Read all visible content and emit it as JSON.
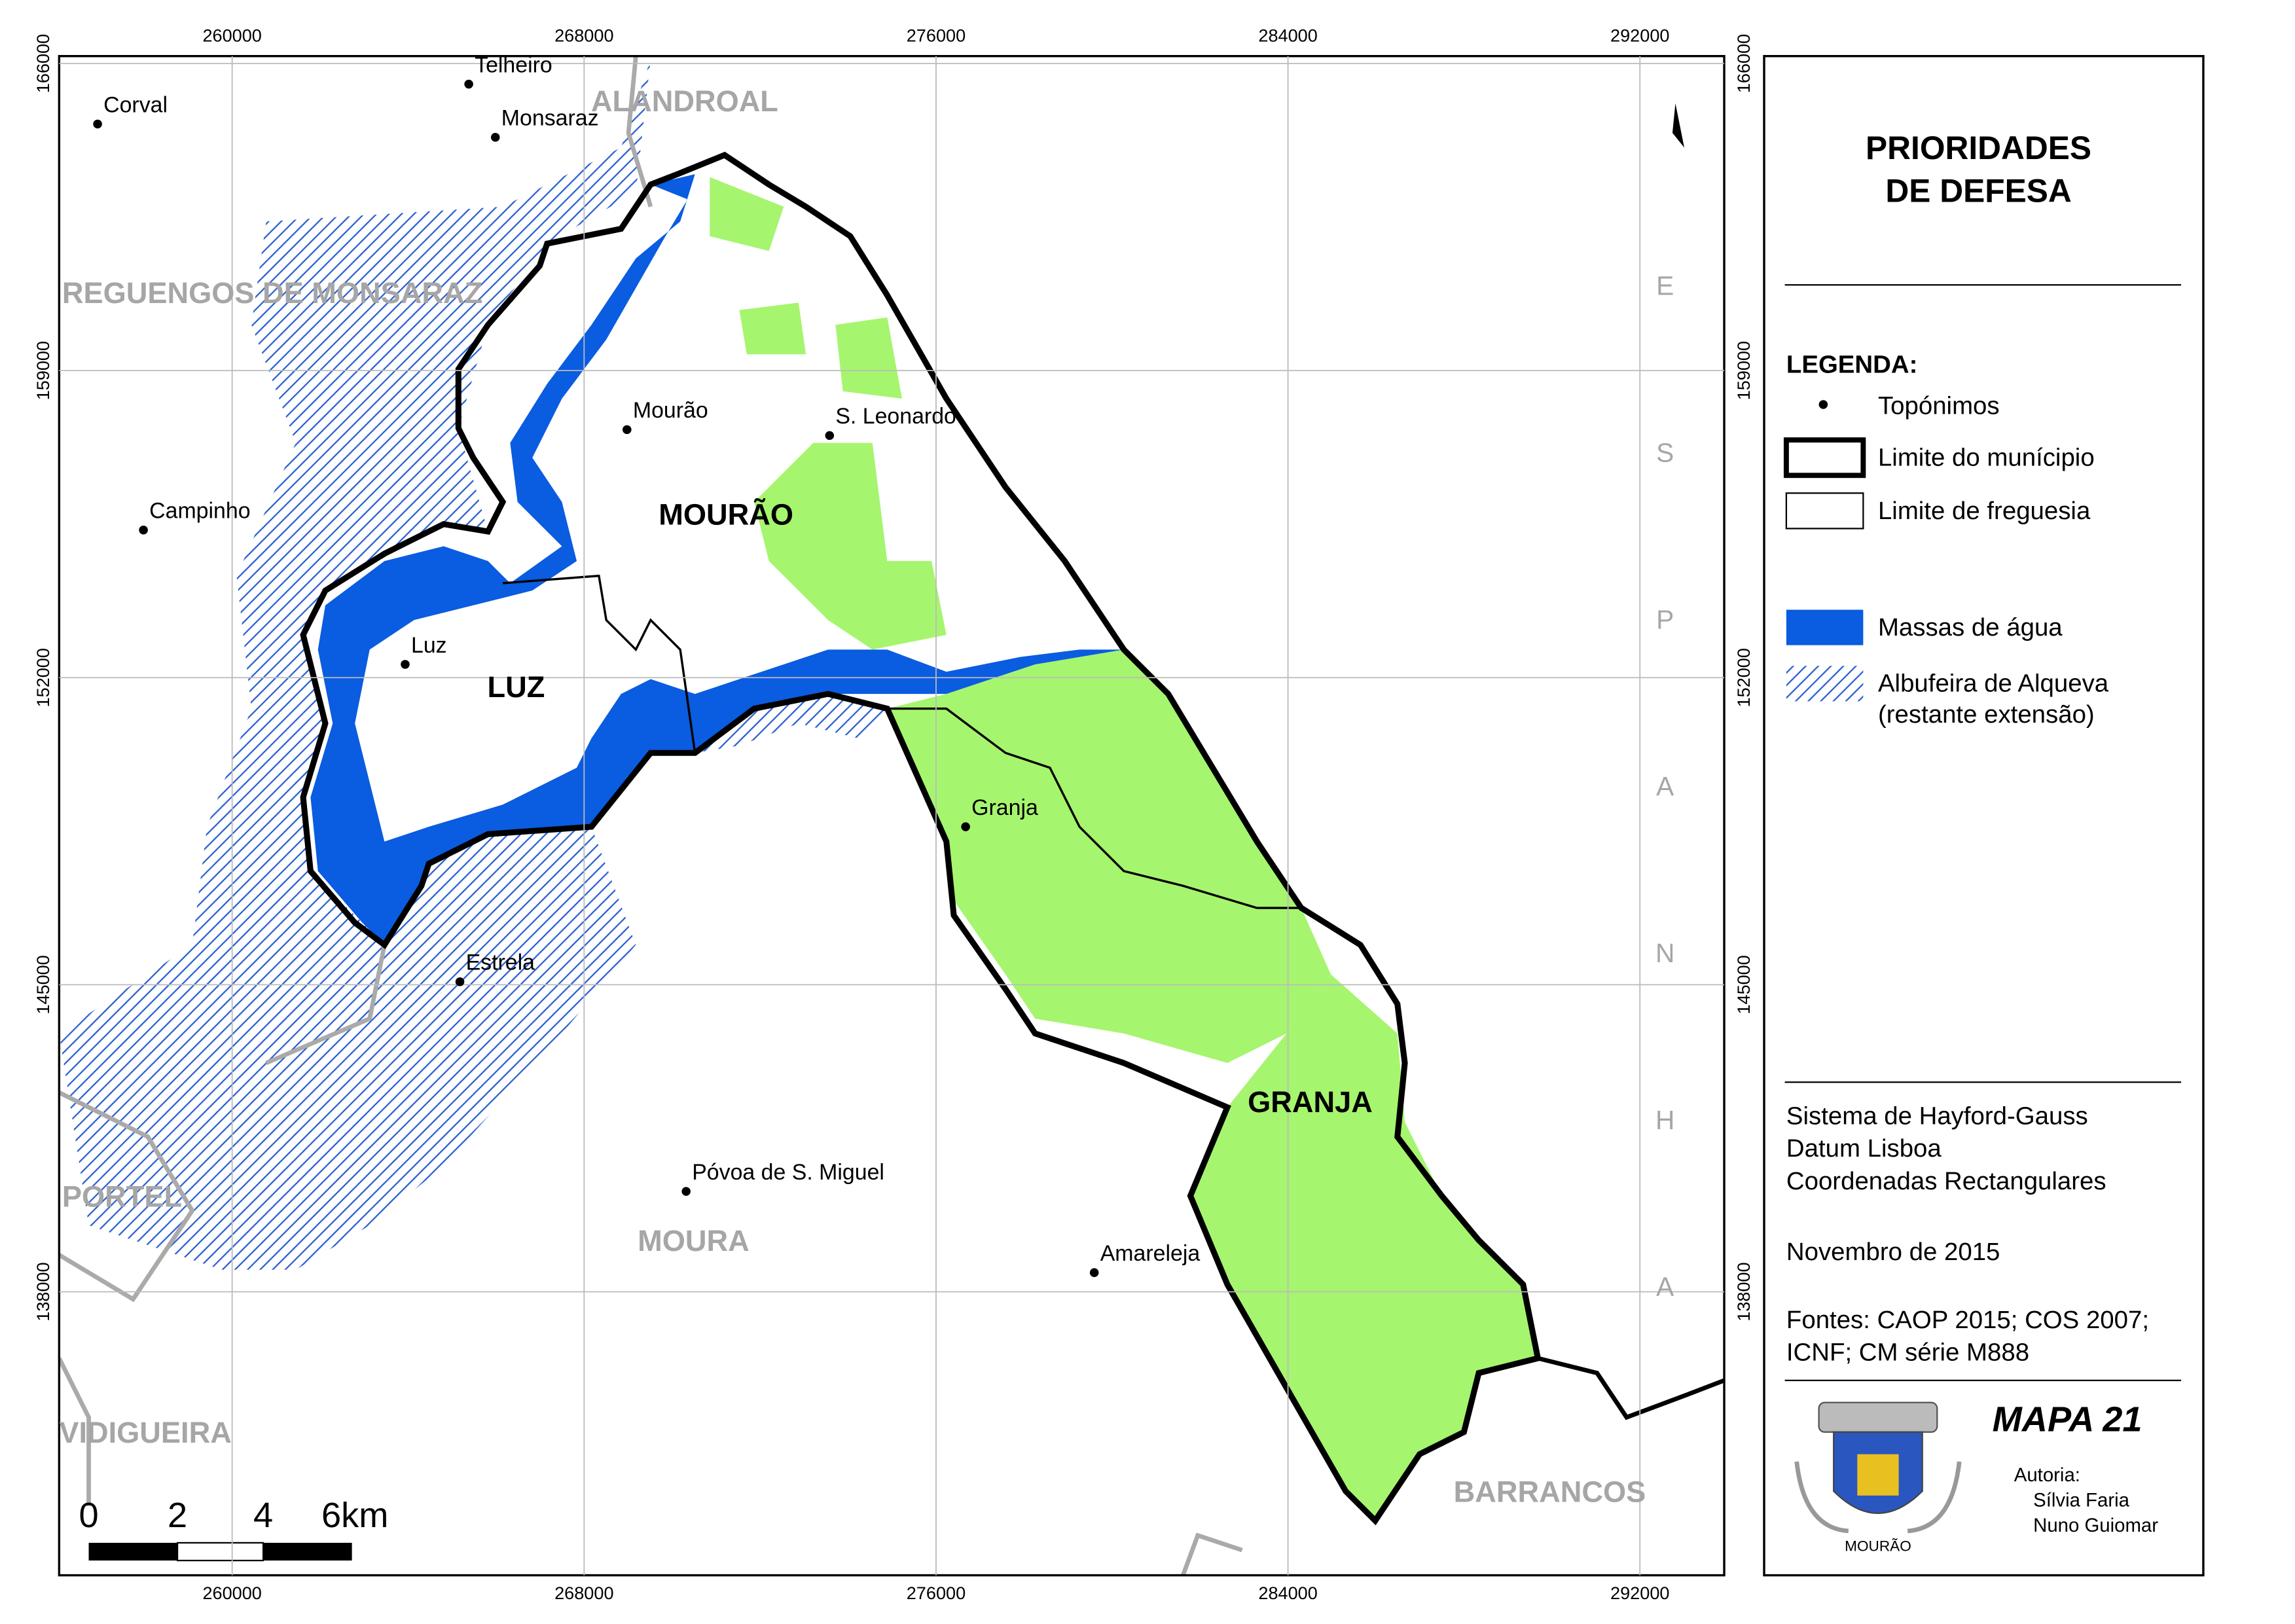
{
  "map": {
    "grid": {
      "x_ticks": [
        260000,
        268000,
        276000,
        284000,
        292000
      ],
      "y_ticks": [
        166000,
        159000,
        152000,
        145000,
        138000
      ]
    },
    "places": [
      "Corval",
      "Telheiro",
      "Monsaraz",
      "Mourão",
      "S. Leonardo",
      "Campinho",
      "Luz",
      "Granja",
      "Estrela",
      "Póvoa de S. Miguel",
      "Amareleja"
    ],
    "municipalities": [
      "ALANDROAL",
      "REGUENGOS DE MONSARAZ",
      "PORTEL",
      "MOURA",
      "VIDIGUEIRA",
      "BARRANCOS"
    ],
    "parishes": [
      "MOURÃO",
      "LUZ",
      "GRANJA"
    ],
    "country": "ESPANHA",
    "scale_bar": [
      "0",
      "2",
      "4",
      "6km"
    ]
  },
  "panel": {
    "title": [
      "PRIORIDADES",
      "DE DEFESA"
    ],
    "legend": {
      "heading": "LEGENDA:",
      "items": [
        "Topónimos",
        "Limite do munícipio",
        "Limite de freguesia",
        "Massas de água",
        [
          "Albufeira de Alqueva",
          "(restante extensão)"
        ]
      ]
    },
    "projection": [
      "Sistema de Hayford-Gauss",
      "Datum Lisboa",
      "Coordenadas Rectangulares"
    ],
    "date": "Novembro de 2015",
    "sources": [
      "Fontes: CAOP 2015; COS 2007;",
      "ICNF; CM série M888"
    ],
    "map_number": "MAPA 21",
    "authorship": {
      "heading": "Autoria:",
      "names": [
        "Sílvia Faria",
        "Nuno Guiomar"
      ]
    },
    "crest_label": "MOURÃO"
  }
}
